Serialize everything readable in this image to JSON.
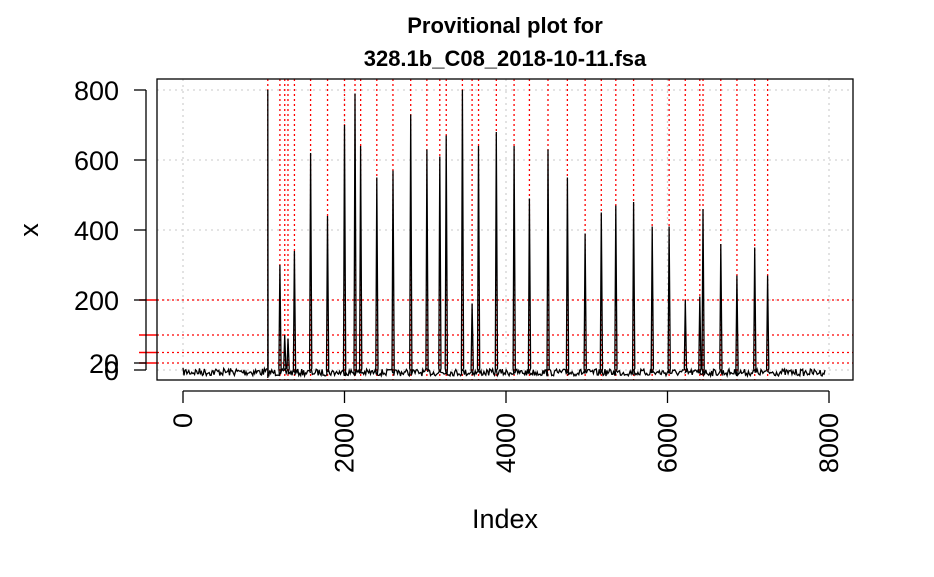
{
  "chart_data": {
    "type": "line",
    "title_line1": "Provitional plot for",
    "title_line2": "328.1b_C08_2018-10-11.fsa",
    "xlabel": "Index",
    "ylabel": "x",
    "xlim": [
      0,
      8000
    ],
    "ylim": [
      0,
      800
    ],
    "x_ticks": [
      "0",
      "2000",
      "4000",
      "6000",
      "8000"
    ],
    "y_ticks": [
      "0",
      "20",
      "200",
      "400",
      "600",
      "800"
    ],
    "grid": true,
    "baseline": 0,
    "signal_start": 1050,
    "signal_end": 7950,
    "noise_start": 0,
    "peaks": [
      [
        1200,
        300
      ],
      [
        1260,
        100
      ],
      [
        1300,
        90
      ],
      [
        1380,
        340
      ],
      [
        1580,
        620
      ],
      [
        1790,
        440
      ],
      [
        2000,
        700
      ],
      [
        2130,
        790
      ],
      [
        2200,
        640
      ],
      [
        2400,
        550
      ],
      [
        2600,
        570
      ],
      [
        2820,
        730
      ],
      [
        3020,
        630
      ],
      [
        3180,
        610
      ],
      [
        3260,
        670
      ],
      [
        3460,
        800
      ],
      [
        3580,
        190
      ],
      [
        3660,
        640
      ],
      [
        3880,
        680
      ],
      [
        4100,
        640
      ],
      [
        4290,
        490
      ],
      [
        4520,
        630
      ],
      [
        4760,
        550
      ],
      [
        4980,
        390
      ],
      [
        5180,
        450
      ],
      [
        5360,
        470
      ],
      [
        5580,
        480
      ],
      [
        5810,
        410
      ],
      [
        6020,
        410
      ],
      [
        6220,
        200
      ],
      [
        6400,
        210
      ],
      [
        6440,
        460
      ],
      [
        6660,
        360
      ],
      [
        6860,
        270
      ],
      [
        7080,
        350
      ],
      [
        7240,
        270
      ]
    ],
    "red_vlines": [
      1050,
      1200,
      1260,
      1300,
      1380,
      1580,
      1790,
      2000,
      2130,
      2200,
      2400,
      2600,
      2820,
      3020,
      3180,
      3260,
      3460,
      3580,
      3660,
      3880,
      4100,
      4290,
      4520,
      4760,
      4980,
      5180,
      5360,
      5580,
      5810,
      6020,
      6220,
      6400,
      6440,
      6660,
      6860,
      7080,
      7240
    ],
    "red_hlines": [
      200,
      100,
      50,
      20
    ],
    "colors": {
      "signal": "#000000",
      "marker": "#ff0000",
      "grid": "#d3d3d3"
    }
  }
}
